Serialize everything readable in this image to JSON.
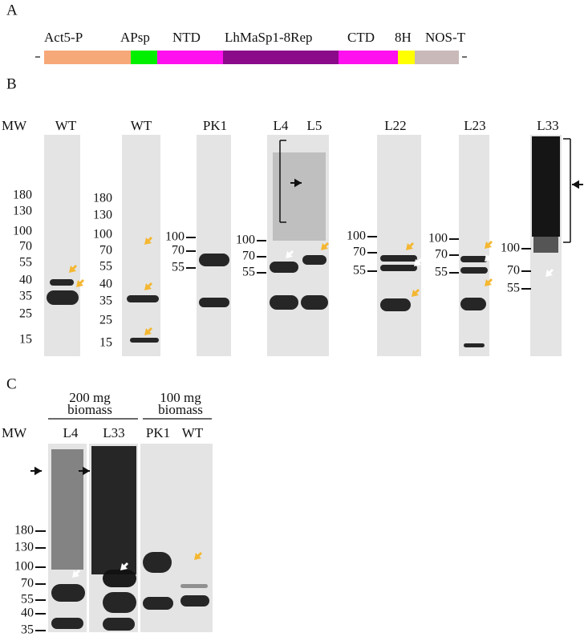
{
  "panel_a": {
    "label": "A",
    "segments": [
      {
        "name": "Act5-P",
        "color": "#f7a878"
      },
      {
        "name": "APsp",
        "color": "#00f000"
      },
      {
        "name": "NTD",
        "color": "#ff10ee"
      },
      {
        "name": "LhMaSp1-8Rep",
        "color": "#8a0a8a"
      },
      {
        "name": "CTD",
        "color": "#ff10ee"
      },
      {
        "name": "8H",
        "color": "#ffff00"
      },
      {
        "name": "NOS-T",
        "color": "#c9b9b9"
      }
    ]
  },
  "panel_b": {
    "label": "B",
    "mw_label": "MW",
    "blots": [
      {
        "lanes": [
          "WT"
        ],
        "markers": [
          180,
          130,
          100,
          70,
          55,
          40,
          35,
          25,
          15
        ]
      },
      {
        "lanes": [
          "WT"
        ],
        "markers": [
          180,
          130,
          100,
          70,
          55,
          40,
          35,
          25,
          15
        ]
      },
      {
        "lanes": [
          "PK1"
        ],
        "markers": [
          100,
          70,
          55
        ]
      },
      {
        "lanes": [
          "L4",
          "L5"
        ],
        "markers": [
          100,
          70,
          55
        ]
      },
      {
        "lanes": [
          "L22"
        ],
        "markers": [
          100,
          70,
          55
        ]
      },
      {
        "lanes": [
          "L23"
        ],
        "markers": [
          100,
          70,
          55
        ]
      },
      {
        "lanes": [
          "L33"
        ],
        "markers": [
          100,
          70,
          55
        ]
      }
    ]
  },
  "panel_c": {
    "label": "C",
    "mw_label": "MW",
    "groups": [
      [
        "200 mg",
        "biomass"
      ],
      [
        "100 mg",
        "biomass"
      ]
    ],
    "lanes": [
      "L4",
      "L33",
      "PK1",
      "WT"
    ],
    "markers": [
      180,
      130,
      100,
      70,
      55,
      40,
      35
    ]
  }
}
